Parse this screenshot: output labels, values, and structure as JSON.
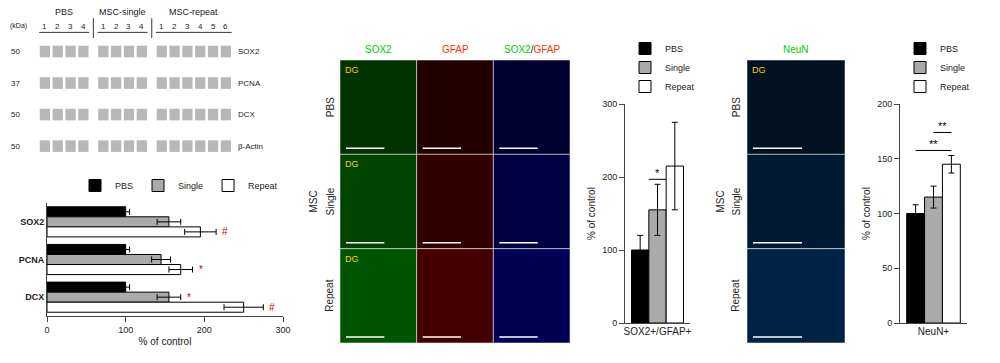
{
  "chart_data": [
    {
      "type": "blot",
      "groups": [
        {
          "name": "PBS",
          "lanes": [
            1,
            2,
            3,
            4
          ]
        },
        {
          "name": "MSC-single",
          "lanes": [
            1,
            2,
            3,
            4
          ]
        },
        {
          "name": "MSC-repeat",
          "lanes": [
            1,
            2,
            3,
            4,
            5,
            6
          ]
        }
      ],
      "unit_label": "(kDa)",
      "bands": [
        {
          "name": "SOX2",
          "kda": 50
        },
        {
          "name": "PCNA",
          "kda": 37
        },
        {
          "name": "DCX",
          "kda": 50
        },
        {
          "name": "β-Actin",
          "kda": 50
        }
      ]
    },
    {
      "type": "bar",
      "orientation": "horizontal",
      "categories": [
        "SOX2",
        "PCNA",
        "DCX"
      ],
      "series": [
        {
          "name": "PBS",
          "color": "#000000",
          "values": [
            100,
            100,
            100
          ],
          "errors": [
            5,
            5,
            5
          ]
        },
        {
          "name": "Single",
          "color": "#aaaaaa",
          "values": [
            155,
            145,
            155
          ],
          "errors": [
            15,
            12,
            15
          ]
        },
        {
          "name": "Repeat",
          "color": "#ffffff",
          "values": [
            195,
            170,
            250
          ],
          "errors": [
            20,
            15,
            25
          ]
        }
      ],
      "xlabel": "% of control",
      "xlim": [
        0,
        300
      ],
      "xticks": [
        0,
        100,
        200,
        300
      ],
      "grid": false,
      "legend": "upper right",
      "annotations": [
        {
          "text": "#",
          "category": "SOX2",
          "series": [
            "Repeat"
          ],
          "color": "#cc0000"
        },
        {
          "text": "*",
          "category": "PCNA",
          "series": [
            "Repeat"
          ],
          "color": "#cc0000"
        },
        {
          "text": "*",
          "category": "DCX",
          "series": [
            "Single"
          ],
          "color": "#cc0000"
        },
        {
          "text": "#",
          "category": "DCX",
          "series": [
            "Repeat"
          ],
          "color": "#cc0000"
        }
      ]
    },
    {
      "type": "micrograph",
      "columns": [
        {
          "text": "SOX2",
          "color": "#00cc00"
        },
        {
          "text": "GFAP",
          "color": "#ff3300"
        },
        {
          "parts": [
            {
              "text": "SOX2",
              "color": "#00cc00"
            },
            {
              "text": "/"
            },
            {
              "text": "GFAP",
              "color": "#ff3300"
            }
          ]
        }
      ],
      "rows": [
        "PBS",
        "Single",
        "Repeat"
      ],
      "group_label": "MSC",
      "colors": [
        [
          "#003300",
          "#220000",
          "#000033"
        ],
        [
          "#004400",
          "#330000",
          "#000044"
        ],
        [
          "#005500",
          "#440000",
          "#000055"
        ]
      ],
      "annotations": [
        {
          "text": "DG",
          "row": 0,
          "column": 0,
          "color": "#ffcc00"
        },
        {
          "text": "DG",
          "row": 1,
          "column": 0,
          "color": "#ffcc00"
        },
        {
          "text": "DG",
          "row": 2,
          "column": 0,
          "color": "#ffcc00"
        }
      ]
    },
    {
      "type": "bar",
      "categories": [
        null
      ],
      "series": [
        {
          "name": "PBS",
          "color": "#000000",
          "values": [
            100
          ],
          "errors": [
            20
          ]
        },
        {
          "name": "Single",
          "color": "#aaaaaa",
          "values": [
            155
          ],
          "errors": [
            35
          ]
        },
        {
          "name": "Repeat",
          "color": "#ffffff",
          "values": [
            215
          ],
          "errors": [
            60
          ]
        }
      ],
      "xlabel": "SOX2+/GFAP+",
      "ylabel": "% of control",
      "ylim": [
        0,
        300
      ],
      "yticks": [
        0,
        100,
        200,
        300
      ],
      "grid": false,
      "legend": "upper left",
      "tick_labels": "y",
      "annotations": [
        {
          "text": "*",
          "series": [
            "Single"
          ]
        }
      ]
    },
    {
      "type": "micrograph",
      "columns": [
        {
          "text": "NeuN",
          "color": "#00cc00"
        }
      ],
      "rows": [
        "PBS",
        "Single",
        "Repeat"
      ],
      "group_label": "MSC",
      "colors": [
        [
          "#001122"
        ],
        [
          "#001a33"
        ],
        [
          "#002244"
        ]
      ],
      "annotations": [
        {
          "text": "DG",
          "row": 0,
          "column": 0,
          "color": "#ffcc00"
        }
      ]
    },
    {
      "type": "bar",
      "categories": [
        null
      ],
      "series": [
        {
          "name": "PBS",
          "color": "#000000",
          "values": [
            100
          ],
          "errors": [
            8
          ]
        },
        {
          "name": "Single",
          "color": "#aaaaaa",
          "values": [
            115
          ],
          "errors": [
            10
          ]
        },
        {
          "name": "Repeat",
          "color": "#ffffff",
          "values": [
            145
          ],
          "errors": [
            8
          ]
        }
      ],
      "xlabel": "NeuN+",
      "ylabel": "% of control",
      "ylim": [
        0,
        200
      ],
      "yticks": [
        0,
        50,
        100,
        150,
        200
      ],
      "grid": false,
      "legend": "upper left",
      "tick_labels": "y",
      "annotations": [
        {
          "text": "**",
          "series": [
            "PBS",
            "Repeat"
          ]
        },
        {
          "text": "**",
          "series": [
            "Single",
            "Repeat"
          ]
        }
      ]
    }
  ]
}
